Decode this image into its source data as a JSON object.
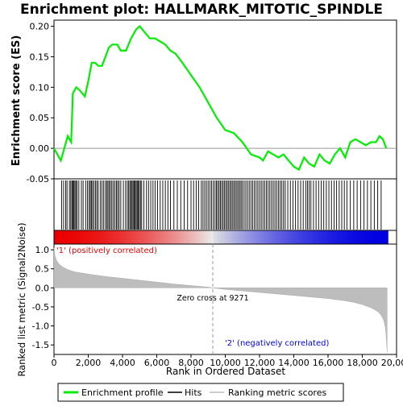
{
  "chart_data": {
    "type": "line",
    "title": "Enrichment plot: HALLMARK_MITOTIC_SPINDLE",
    "es_panel": {
      "ylabel": "Enrichment score (ES)",
      "ylim": [
        -0.05,
        0.21
      ],
      "yticks": [
        "0.20",
        "0.15",
        "0.10",
        "0.05",
        "0.00",
        "-0.05"
      ],
      "ytick_values": [
        0.2,
        0.15,
        0.1,
        0.05,
        0.0,
        -0.05
      ],
      "series": [
        {
          "name": "Enrichment profile",
          "color": "#00ee00",
          "x": [
            0,
            400,
            600,
            800,
            1000,
            1100,
            1300,
            1500,
            1800,
            2000,
            2200,
            2400,
            2600,
            2800,
            3000,
            3200,
            3400,
            3700,
            3900,
            4200,
            4500,
            4800,
            5000,
            5300,
            5600,
            5900,
            6200,
            6500,
            6800,
            7100,
            7500,
            8000,
            8500,
            9000,
            9500,
            10000,
            10500,
            11000,
            11500,
            12000,
            12200,
            12500,
            12800,
            13100,
            13400,
            13700,
            14000,
            14300,
            14600,
            14900,
            15200,
            15500,
            15800,
            16100,
            16400,
            16700,
            17000,
            17300,
            17600,
            17900,
            18200,
            18500,
            18800,
            19000,
            19200,
            19400
          ],
          "values": [
            0.0,
            -0.02,
            0.0,
            0.02,
            0.01,
            0.09,
            0.1,
            0.095,
            0.085,
            0.11,
            0.14,
            0.14,
            0.135,
            0.135,
            0.15,
            0.165,
            0.17,
            0.17,
            0.16,
            0.16,
            0.18,
            0.195,
            0.2,
            0.19,
            0.18,
            0.18,
            0.175,
            0.17,
            0.16,
            0.155,
            0.14,
            0.12,
            0.1,
            0.075,
            0.05,
            0.03,
            0.025,
            0.01,
            -0.01,
            -0.015,
            -0.02,
            -0.005,
            -0.01,
            -0.015,
            -0.01,
            -0.02,
            -0.03,
            -0.035,
            -0.015,
            -0.025,
            -0.03,
            -0.01,
            -0.02,
            -0.025,
            -0.01,
            0.0,
            -0.015,
            0.01,
            0.015,
            0.01,
            0.005,
            0.01,
            0.01,
            0.02,
            0.015,
            0.0
          ]
        }
      ]
    },
    "hits_legend": "Hits",
    "ranking_legend": "Ranking metric scores",
    "hit_positions": [
      450,
      560,
      680,
      760,
      900,
      980,
      1050,
      1100,
      1160,
      1220,
      1280,
      1350,
      1450,
      1600,
      1700,
      1850,
      1950,
      2050,
      2120,
      2180,
      2250,
      2330,
      2420,
      2500,
      2580,
      2700,
      2800,
      2900,
      3000,
      3080,
      3150,
      3220,
      3300,
      3380,
      3470,
      3560,
      3650,
      3720,
      3800,
      3900,
      4050,
      4180,
      4280,
      4360,
      4430,
      4500,
      4560,
      4620,
      4680,
      4740,
      4800,
      4860,
      4920,
      4980,
      5050,
      5120,
      5250,
      5400,
      5520,
      5650,
      5780,
      5900,
      6050,
      6200,
      6350,
      6500,
      6650,
      6800,
      7000,
      7200,
      7400,
      7600,
      7800,
      8000,
      8150,
      8300,
      8450,
      8600,
      8700,
      8800,
      8900,
      9000,
      9100,
      9200,
      9300,
      9400,
      9480,
      9560,
      9640,
      9720,
      9800,
      9880,
      9960,
      10040,
      10120,
      10200,
      10280,
      10360,
      10440,
      10520,
      10600,
      10680,
      10760,
      10840,
      10920,
      11000,
      11100,
      11200,
      11300,
      11400,
      11500,
      11600,
      11700,
      11800,
      11900,
      12000,
      12100,
      12200,
      12300,
      12400,
      12500,
      12600,
      12700,
      12800,
      12900,
      13000,
      13100,
      13200,
      13300,
      13400,
      13500,
      13650,
      13800,
      13950,
      14100,
      14250,
      14400,
      14550,
      14700,
      14800,
      14900,
      15000,
      15150,
      15300,
      15450,
      15600,
      15750,
      15900,
      16050,
      16200,
      16350,
      16500,
      16650,
      16800,
      16950,
      17100,
      17300,
      17500,
      17700,
      17900,
      18100,
      18300,
      18500,
      18700,
      18900,
      19100
    ],
    "ranking_panel": {
      "ylabel": "Ranked list metric (Signal2Noise)",
      "xlabel": "Rank in Ordered Dataset",
      "ylim": [
        -1.75,
        1.15
      ],
      "yticks": [
        "1.0",
        "0.5",
        "0.0",
        "-0.5",
        "-1.0",
        "-1.5"
      ],
      "ytick_values": [
        1.0,
        0.5,
        0.0,
        -0.5,
        -1.0,
        -1.5
      ],
      "xlim": [
        0,
        20000
      ],
      "xticks": [
        "0",
        "2,000",
        "4,000",
        "6,000",
        "8,000",
        "10,000",
        "12,000",
        "14,000",
        "16,000",
        "18,000",
        "20,000"
      ],
      "xtick_values": [
        0,
        2000,
        4000,
        6000,
        8000,
        10000,
        12000,
        14000,
        16000,
        18000,
        20000
      ],
      "x": [
        0,
        50,
        150,
        300,
        500,
        800,
        1200,
        2000,
        3000,
        4000,
        5000,
        6000,
        7000,
        8000,
        9000,
        9271,
        10000,
        11000,
        12000,
        13000,
        14000,
        15000,
        16000,
        17000,
        17500,
        18000,
        18500,
        18900,
        19100,
        19250,
        19350,
        19420,
        19450
      ],
      "values": [
        1.05,
        0.85,
        0.72,
        0.62,
        0.55,
        0.48,
        0.42,
        0.36,
        0.3,
        0.25,
        0.2,
        0.15,
        0.1,
        0.06,
        0.02,
        0.0,
        -0.04,
        -0.08,
        -0.12,
        -0.16,
        -0.2,
        -0.24,
        -0.28,
        -0.34,
        -0.38,
        -0.44,
        -0.52,
        -0.62,
        -0.72,
        -0.85,
        -1.05,
        -1.45,
        -1.7
      ],
      "zero_cross_label": "Zero cross at 9271",
      "zero_cross": 9271,
      "positive_label": "'1' (positively correlated)",
      "negative_label": "'2' (negatively correlated)",
      "positive_color": "#ee0000",
      "negative_color": "#0000ee"
    },
    "total_rank": 19450,
    "legend": {
      "placement": "bottom",
      "entries": [
        "Enrichment profile",
        "Hits",
        "Ranking metric scores"
      ]
    }
  }
}
